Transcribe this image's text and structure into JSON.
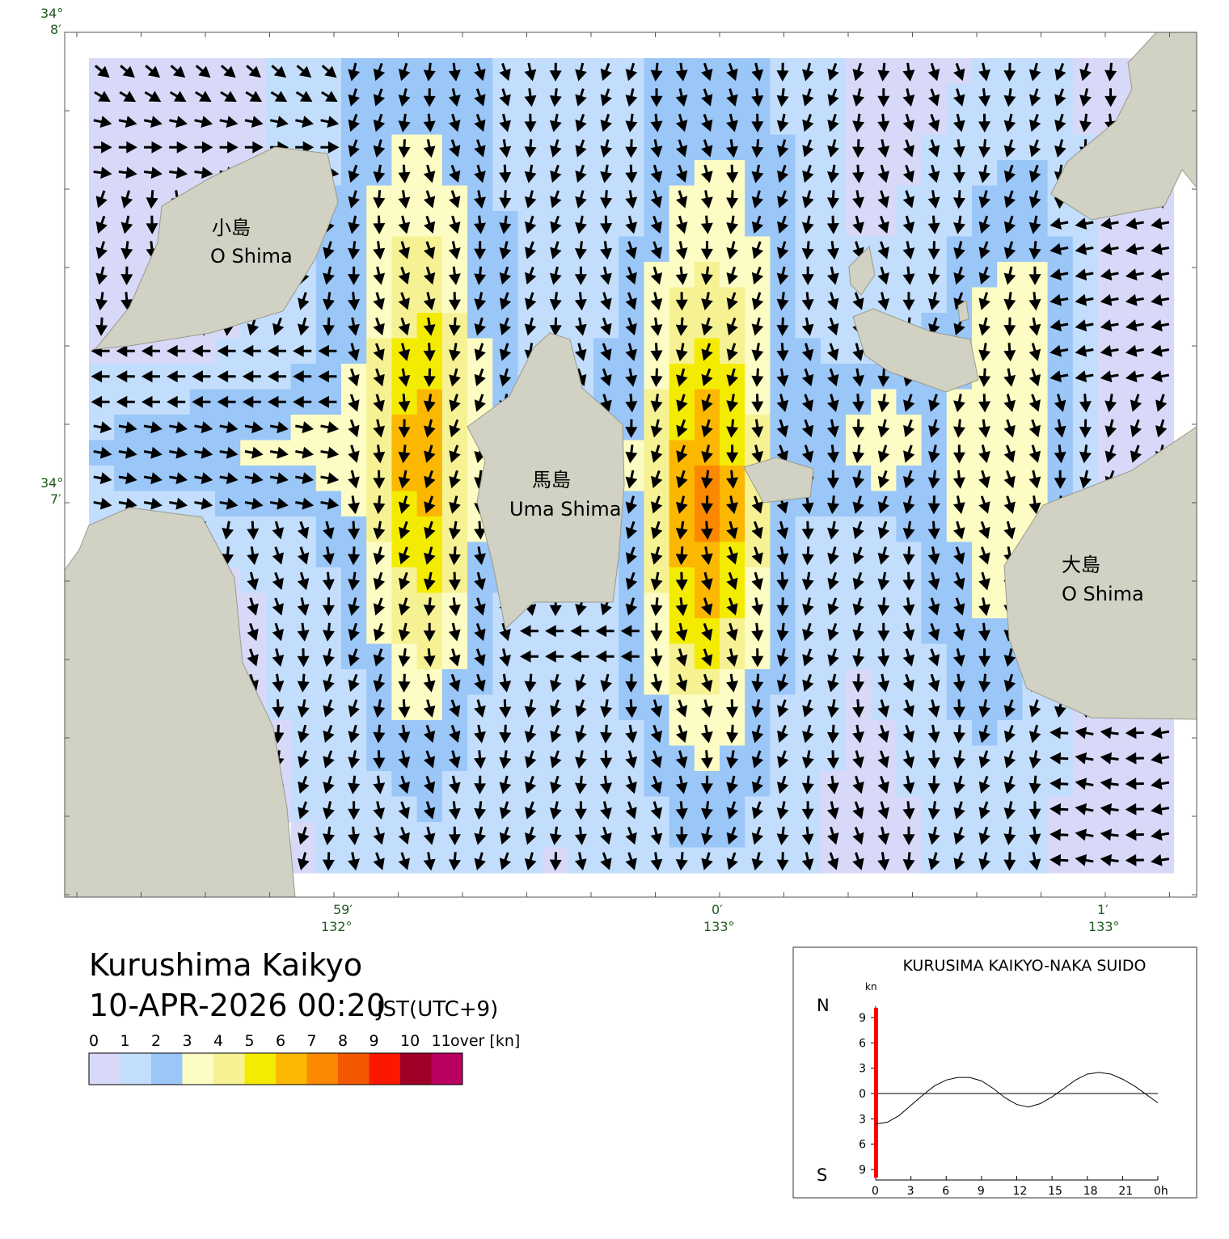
{
  "map": {
    "lat_labels": [
      {
        "deg": "34°",
        "min": "8′"
      },
      {
        "deg": "34°",
        "min": "7′"
      }
    ],
    "lon_labels": [
      {
        "deg": "132°",
        "min": "59′"
      },
      {
        "deg": "133°",
        "min": "0′"
      },
      {
        "deg": "133°",
        "min": "1′"
      }
    ],
    "places": [
      {
        "ja": "小島",
        "en": "O Shima"
      },
      {
        "ja": "馬島",
        "en": "Uma Shima"
      },
      {
        "ja": "大島",
        "en": "O Shima"
      }
    ]
  },
  "header": {
    "title": "Kurushima Kaikyo",
    "datetime": "10-APR-2026 00:20",
    "zone": "JST(UTC+9)"
  },
  "legend": {
    "labels": [
      "0",
      "1",
      "2",
      "3",
      "4",
      "5",
      "6",
      "7",
      "8",
      "9",
      "10",
      "11"
    ],
    "unit": "over [kn]",
    "colors": [
      "#d8d8f8",
      "#c2defc",
      "#9ac6f8",
      "#fcfcc4",
      "#f6f294",
      "#f4ec00",
      "#fcb800",
      "#fc8800",
      "#f45800",
      "#fc1800",
      "#a00028",
      "#b80060"
    ]
  },
  "chart_data": {
    "type": "line",
    "title": "KURUSIMA KAIKYO-NAKA SUIDO",
    "y_unit": "kn",
    "north": "N",
    "south": "S",
    "x": [
      0,
      1,
      2,
      3,
      4,
      5,
      6,
      7,
      8,
      9,
      10,
      11,
      12,
      13,
      14,
      15,
      16,
      17,
      18,
      19,
      20,
      21,
      22,
      23,
      24
    ],
    "series": [
      {
        "color": "#000000",
        "values": [
          -3.6,
          -3.4,
          -2.6,
          -1.4,
          -0.2,
          0.9,
          1.6,
          1.9,
          1.9,
          1.5,
          0.6,
          -0.5,
          -1.3,
          -1.6,
          -1.2,
          -0.4,
          0.6,
          1.6,
          2.3,
          2.5,
          2.3,
          1.7,
          0.9,
          -0.1,
          -1.1
        ]
      }
    ],
    "xlim": [
      0,
      24
    ],
    "ylim": [
      -10,
      10
    ],
    "xticks": [
      0,
      3,
      6,
      9,
      12,
      15,
      18,
      21,
      {
        "value": 24,
        "label": "0h"
      }
    ],
    "yticks": [
      9,
      6,
      3,
      0,
      {
        "value": -3,
        "label": "3"
      },
      {
        "value": -6,
        "label": "6"
      },
      {
        "value": -9,
        "label": "9"
      }
    ]
  }
}
